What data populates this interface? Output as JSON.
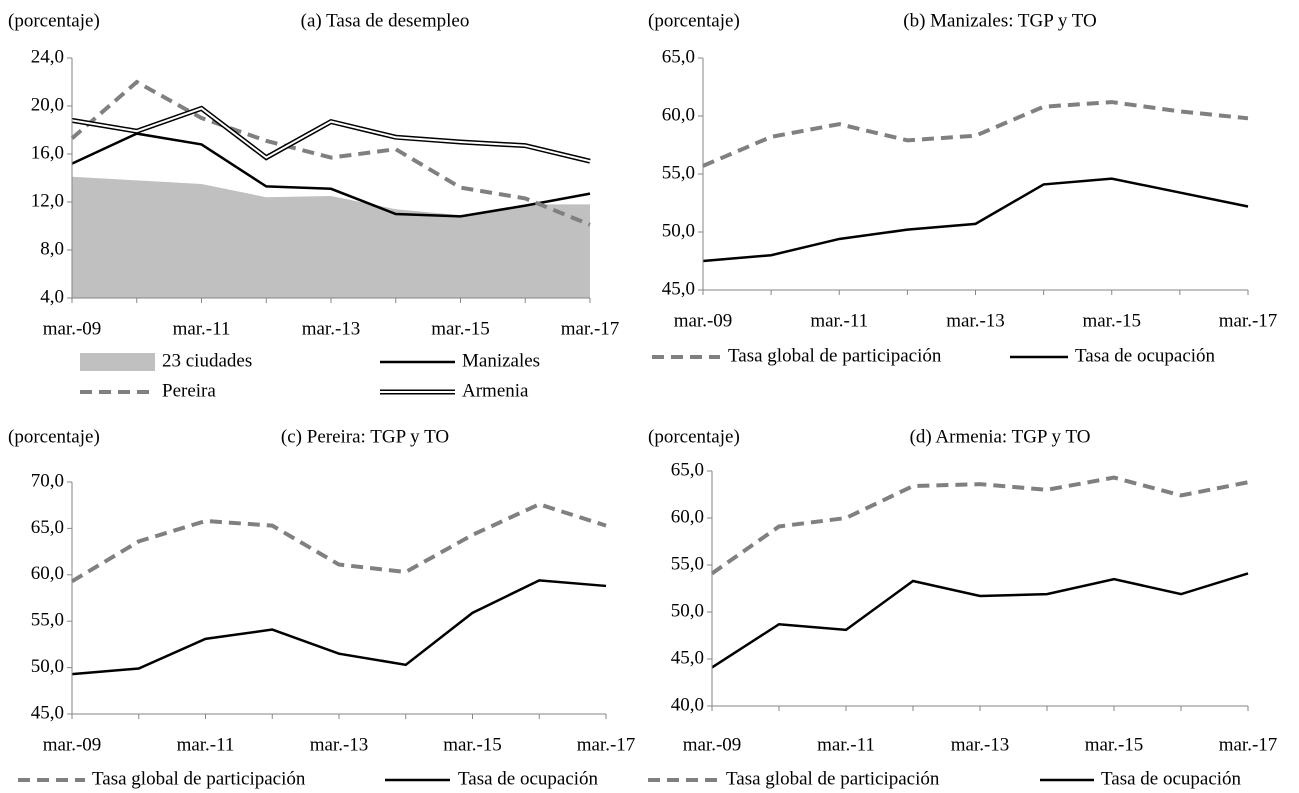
{
  "chart_data": [
    {
      "type": "line",
      "title": "(a) Tasa de desempleo",
      "y_label": "(porcentaje)",
      "categories": [
        "mar.-09",
        null,
        "mar.-11",
        null,
        "mar.-13",
        null,
        "mar.-15",
        null,
        "mar.-17"
      ],
      "ylim": [
        4,
        24
      ],
      "yticks": [
        {
          "value": 4,
          "label": "4,0"
        },
        {
          "value": 8,
          "label": "8,0"
        },
        {
          "value": 12,
          "label": "12,0"
        },
        {
          "value": 16,
          "label": "16,0"
        },
        {
          "value": 20,
          "label": "20,0"
        },
        {
          "value": 24,
          "label": "24,0"
        }
      ],
      "series": [
        {
          "name": "23 ciudades",
          "color": "#c0c0c0",
          "style": "area",
          "values": [
            14.1,
            13.8,
            13.5,
            12.4,
            12.5,
            11.4,
            10.9,
            11.8,
            11.8
          ]
        },
        {
          "name": "Manizales",
          "color": "#000000",
          "style": "solid",
          "values": [
            15.2,
            17.7,
            16.8,
            13.3,
            13.1,
            11.0,
            10.8,
            11.7,
            12.7
          ]
        },
        {
          "name": "Pereira",
          "color": "#808080",
          "style": "dashed",
          "values": [
            17.3,
            22.0,
            19.0,
            17.1,
            15.7,
            16.4,
            13.2,
            12.3,
            10.1
          ]
        },
        {
          "name": "Armenia",
          "color": "#000000",
          "style": "double",
          "values": [
            18.8,
            17.9,
            19.8,
            15.7,
            18.7,
            17.4,
            17.0,
            16.7,
            15.4
          ]
        }
      ]
    },
    {
      "type": "line",
      "title": "(b) Manizales: TGP y TO",
      "y_label": "(porcentaje)",
      "categories": [
        "mar.-09",
        null,
        "mar.-11",
        null,
        "mar.-13",
        null,
        "mar.-15",
        null,
        "mar.-17"
      ],
      "ylim": [
        45,
        65
      ],
      "yticks": [
        {
          "value": 45,
          "label": "45,0"
        },
        {
          "value": 50,
          "label": "50,0"
        },
        {
          "value": 55,
          "label": "55,0"
        },
        {
          "value": 60,
          "label": "60,0"
        },
        {
          "value": 65,
          "label": "65,0"
        }
      ],
      "series": [
        {
          "name": "Tasa global de participación",
          "color": "#808080",
          "style": "dashed",
          "values": [
            55.7,
            58.2,
            59.3,
            57.9,
            58.3,
            60.8,
            61.2,
            60.4,
            59.8
          ]
        },
        {
          "name": "Tasa de ocupación",
          "color": "#000000",
          "style": "solid",
          "values": [
            47.5,
            48.0,
            49.4,
            50.2,
            50.7,
            54.1,
            54.6,
            53.4,
            52.2
          ]
        }
      ]
    },
    {
      "type": "line",
      "title": "(c) Pereira: TGP y TO",
      "y_label": "(porcentaje)",
      "categories": [
        "mar.-09",
        null,
        "mar.-11",
        null,
        "mar.-13",
        null,
        "mar.-15",
        null,
        "mar.-17"
      ],
      "ylim": [
        45,
        70
      ],
      "yticks": [
        {
          "value": 45,
          "label": "45,0"
        },
        {
          "value": 50,
          "label": "50,0"
        },
        {
          "value": 55,
          "label": "55,0"
        },
        {
          "value": 60,
          "label": "60,0"
        },
        {
          "value": 65,
          "label": "65,0"
        },
        {
          "value": 70,
          "label": "70,0"
        }
      ],
      "series": [
        {
          "name": "Tasa global de participación",
          "color": "#808080",
          "style": "dashed",
          "values": [
            59.3,
            63.6,
            65.8,
            65.3,
            61.1,
            60.3,
            64.3,
            67.6,
            65.3
          ]
        },
        {
          "name": "Tasa de ocupación",
          "color": "#000000",
          "style": "solid",
          "values": [
            49.3,
            49.9,
            53.1,
            54.1,
            51.5,
            50.3,
            55.9,
            59.4,
            58.8
          ]
        }
      ]
    },
    {
      "type": "line",
      "title": "(d) Armenia: TGP y TO",
      "y_label": "(porcentaje)",
      "categories": [
        "mar.-09",
        null,
        "mar.-11",
        null,
        "mar.-13",
        null,
        "mar.-15",
        null,
        "mar.-17"
      ],
      "ylim": [
        40,
        65
      ],
      "yticks": [
        {
          "value": 40,
          "label": "40,0"
        },
        {
          "value": 45,
          "label": "45,0"
        },
        {
          "value": 50,
          "label": "50,0"
        },
        {
          "value": 55,
          "label": "55,0"
        },
        {
          "value": 60,
          "label": "60,0"
        },
        {
          "value": 65,
          "label": "65,0"
        }
      ],
      "series": [
        {
          "name": "Tasa global de participación",
          "color": "#808080",
          "style": "dashed",
          "values": [
            54.1,
            59.1,
            60.0,
            63.4,
            63.6,
            63.0,
            64.3,
            62.4,
            63.8
          ]
        },
        {
          "name": "Tasa de ocupación",
          "color": "#000000",
          "style": "solid",
          "values": [
            44.1,
            48.7,
            48.1,
            53.3,
            51.7,
            51.9,
            53.5,
            51.9,
            54.1
          ]
        }
      ]
    }
  ]
}
